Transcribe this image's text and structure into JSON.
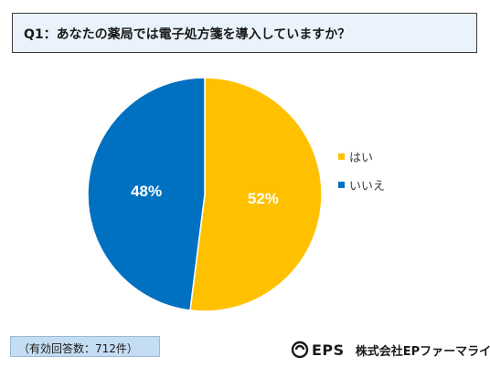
{
  "question": {
    "text": "Q1：あなたの薬局では電子処方箋を導入していますか？"
  },
  "chart_data": {
    "type": "pie",
    "categories": [
      "はい",
      "いいえ"
    ],
    "values": [
      52,
      48
    ],
    "value_labels": [
      "52%",
      "48%"
    ],
    "colors": [
      "#ffc000",
      "#0070c0"
    ],
    "label_color": "#ffffff",
    "start": "12 o'clock, clockwise",
    "legend_position": "right"
  },
  "legend": {
    "items": [
      {
        "label": "はい",
        "color": "#ffc000"
      },
      {
        "label": "いいえ",
        "color": "#0070c0"
      }
    ]
  },
  "note": {
    "text": "（有効回答数：712件）"
  },
  "brand": {
    "mark": "EPS",
    "company": "株式会社EPファーマライン",
    "logo_icon": "eps-swirl-logo-icon"
  }
}
